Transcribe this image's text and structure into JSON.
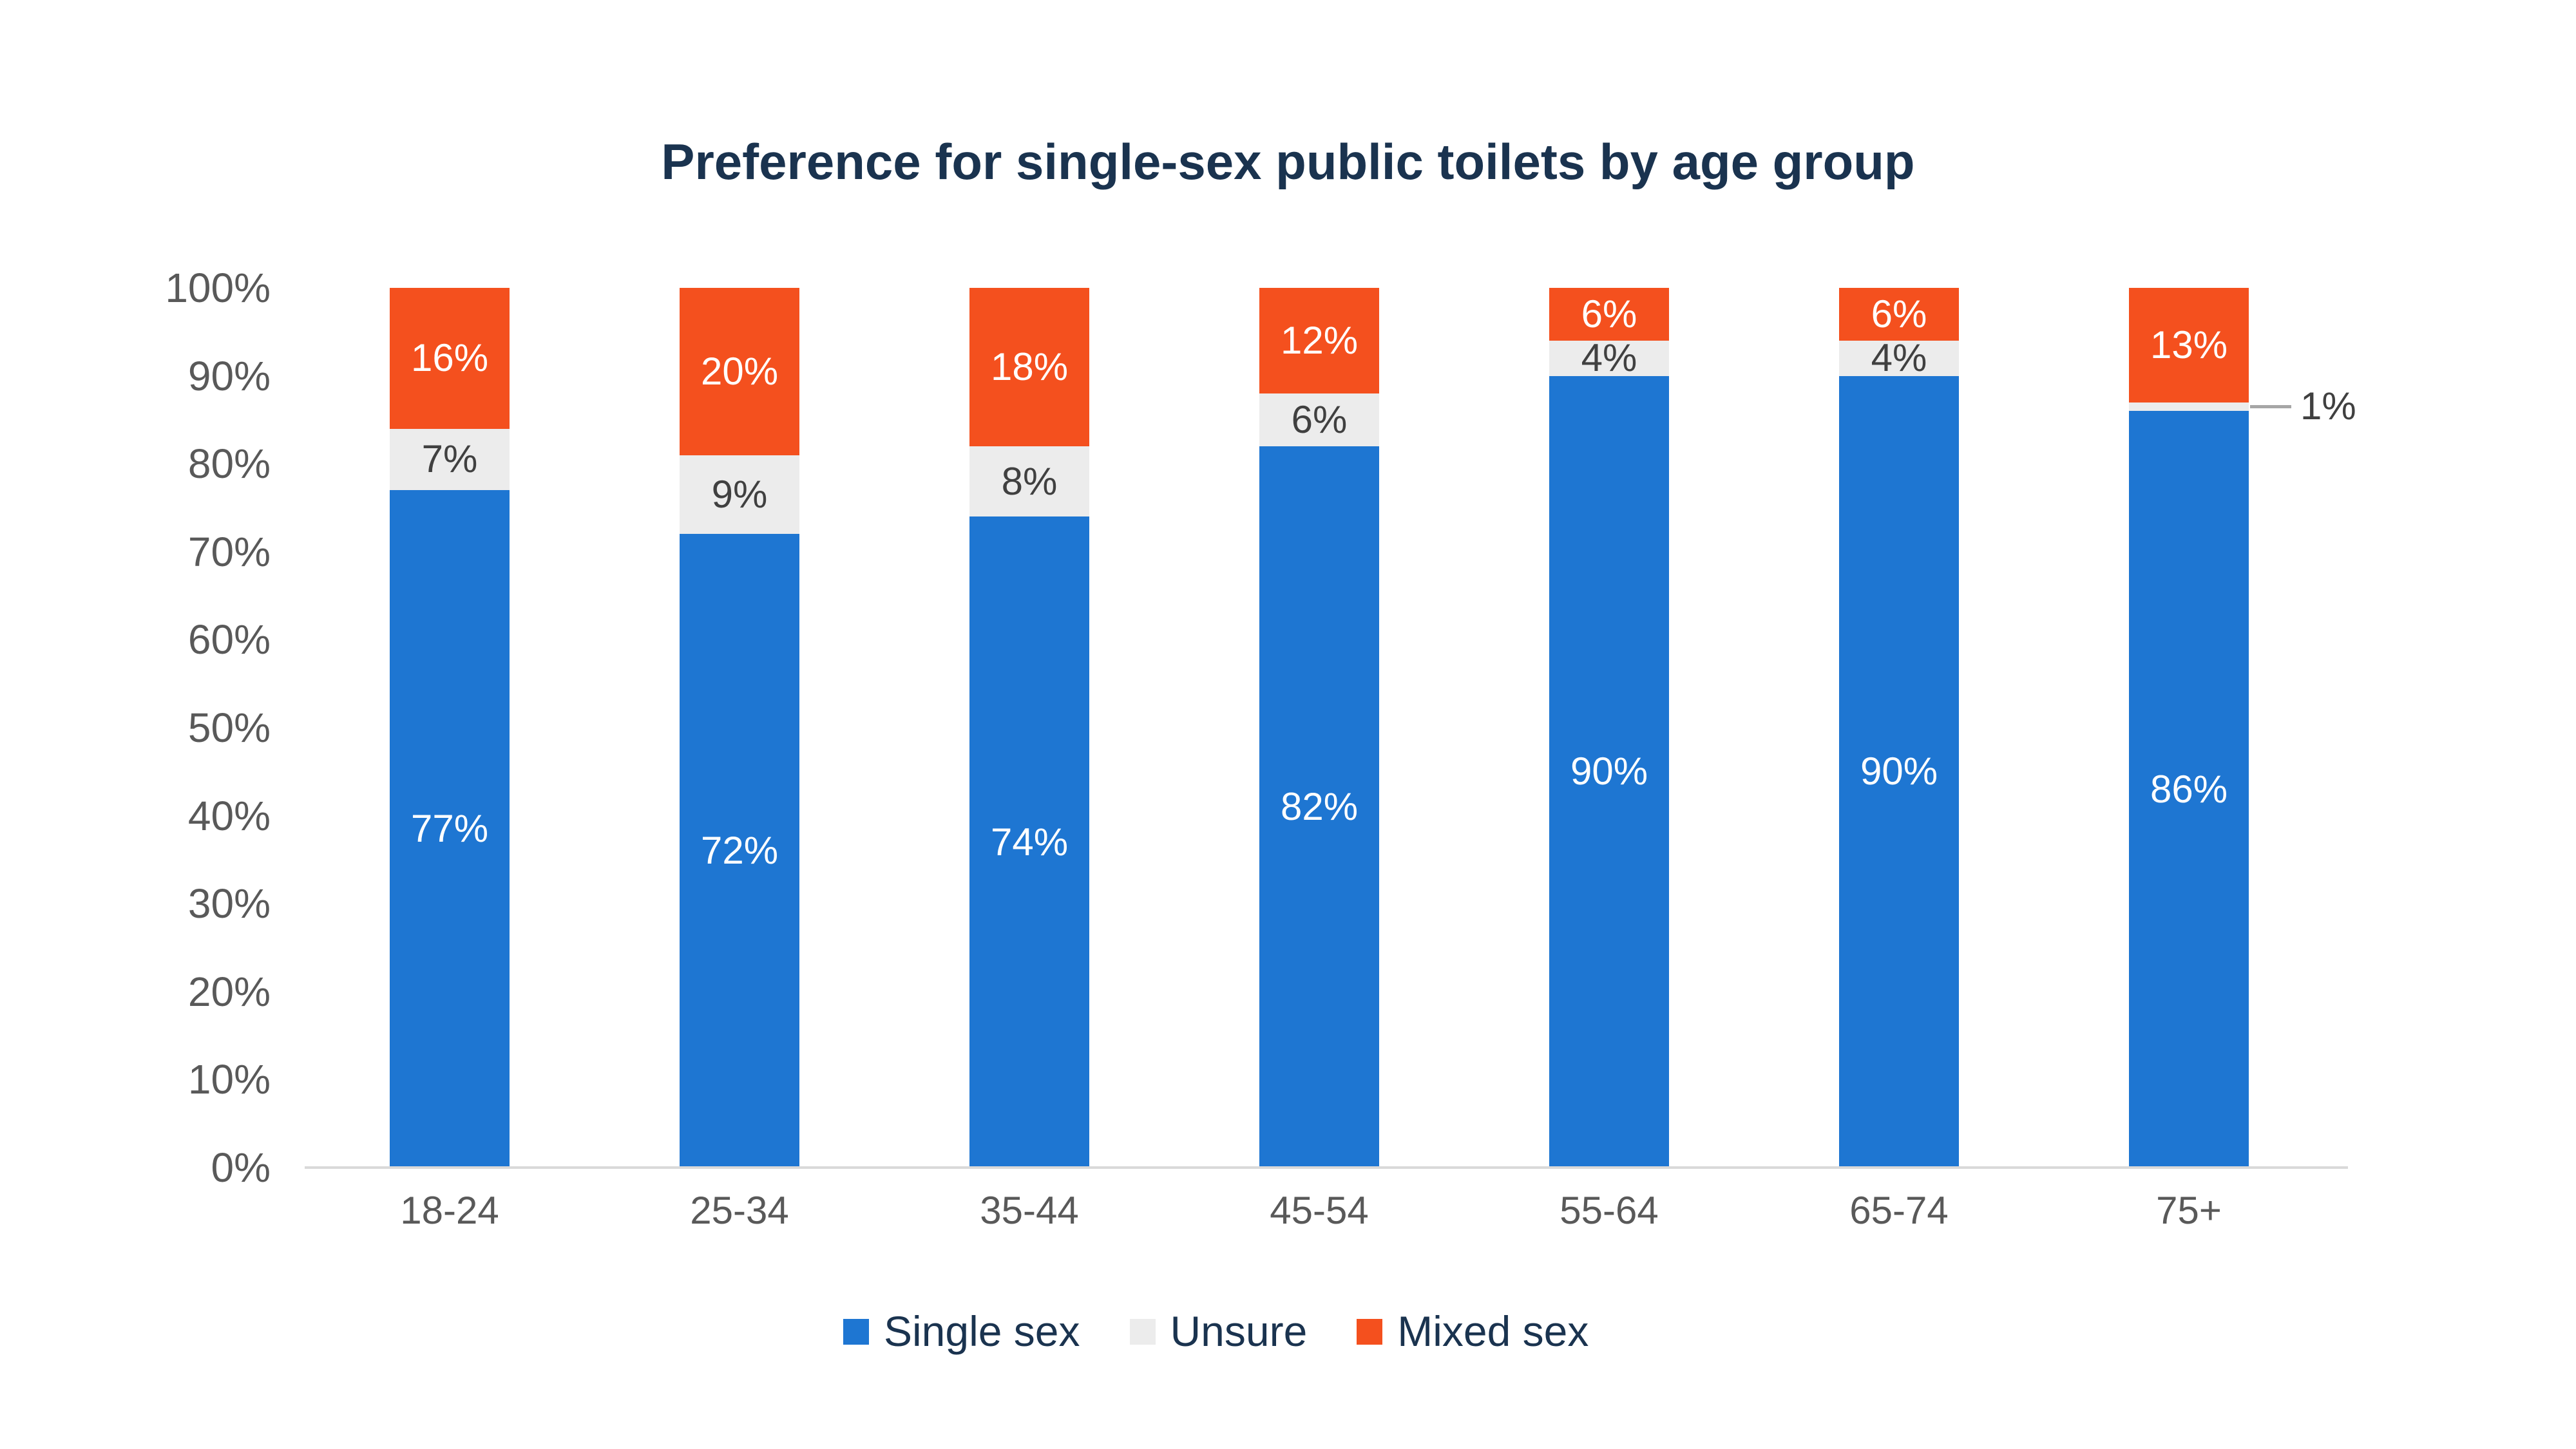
{
  "chart_data": {
    "type": "bar",
    "variant": "stacked-column-100",
    "title": "Preference for single-sex public toilets by age group",
    "categories": [
      "18-24",
      "25-34",
      "35-44",
      "45-54",
      "55-64",
      "65-74",
      "75+"
    ],
    "series": [
      {
        "name": "Single sex",
        "color": "#1E76D2",
        "label_color": "#FFFFFF",
        "values": [
          77,
          72,
          74,
          82,
          90,
          90,
          86
        ]
      },
      {
        "name": "Unsure",
        "color": "#ECECEC",
        "label_color": "#404040",
        "values": [
          7,
          9,
          8,
          6,
          4,
          4,
          1
        ]
      },
      {
        "name": "Mixed sex",
        "color": "#F4501E",
        "label_color": "#FFFFFF",
        "values": [
          16,
          20,
          18,
          12,
          6,
          6,
          13
        ]
      }
    ],
    "value_suffix": "%",
    "ylim": [
      0,
      100
    ],
    "yticks": [
      {
        "value": 0,
        "label": "0%"
      },
      {
        "value": 10,
        "label": "10%"
      },
      {
        "value": 20,
        "label": "20%"
      },
      {
        "value": 30,
        "label": "30%"
      },
      {
        "value": 40,
        "label": "40%"
      },
      {
        "value": 50,
        "label": "50%"
      },
      {
        "value": 60,
        "label": "60%"
      },
      {
        "value": 70,
        "label": "70%"
      },
      {
        "value": 80,
        "label": "80%"
      },
      {
        "value": 90,
        "label": "90%"
      },
      {
        "value": 100,
        "label": "100%"
      }
    ],
    "grid": false,
    "legend_position": "bottom",
    "annotations": [
      {
        "category": "75+",
        "series": "Unsure",
        "text": "1%",
        "placement": "outside-right"
      }
    ],
    "style": {
      "title_color": "#1A334F",
      "axis_text_color": "#595959",
      "axis_line_color": "#D9D9D9",
      "leader_line_color": "#A6A6A6",
      "annotation_text_color": "#404040",
      "legend_text_color": "#1A334F",
      "background_color": "#FFFFFF"
    }
  }
}
